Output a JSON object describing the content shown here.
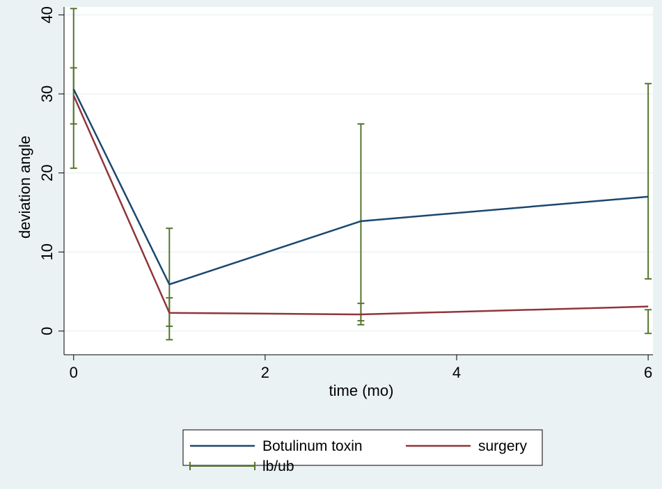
{
  "chart_data": {
    "type": "line",
    "xlabel": "time (mo)",
    "ylabel": "deviation angle",
    "xlim": [
      -0.1,
      6.05
    ],
    "ylim": [
      -3,
      41
    ],
    "xticks": [
      0,
      2,
      4,
      6
    ],
    "yticks": [
      0,
      10,
      20,
      30,
      40
    ],
    "grid": true,
    "legend_position": "bottom",
    "series": [
      {
        "name": "Botulinum toxin",
        "color": "#1a476f",
        "x": [
          0,
          1,
          3,
          6
        ],
        "y": [
          30.6,
          5.9,
          13.9,
          17.0
        ]
      },
      {
        "name": "surgery",
        "color": "#90353b",
        "x": [
          0,
          1,
          3,
          6
        ],
        "y": [
          29.8,
          2.3,
          2.1,
          3.1
        ]
      }
    ],
    "error_bars": {
      "name": "lb/ub",
      "color": "#55752f",
      "x": [
        0,
        0,
        1,
        1,
        3,
        3,
        6,
        6
      ],
      "lower": [
        20.6,
        26.2,
        -1.1,
        0.6,
        1.3,
        0.8,
        6.6,
        -0.3
      ],
      "upper": [
        40.8,
        33.3,
        13.0,
        4.2,
        26.2,
        3.5,
        31.3,
        2.7
      ]
    }
  }
}
